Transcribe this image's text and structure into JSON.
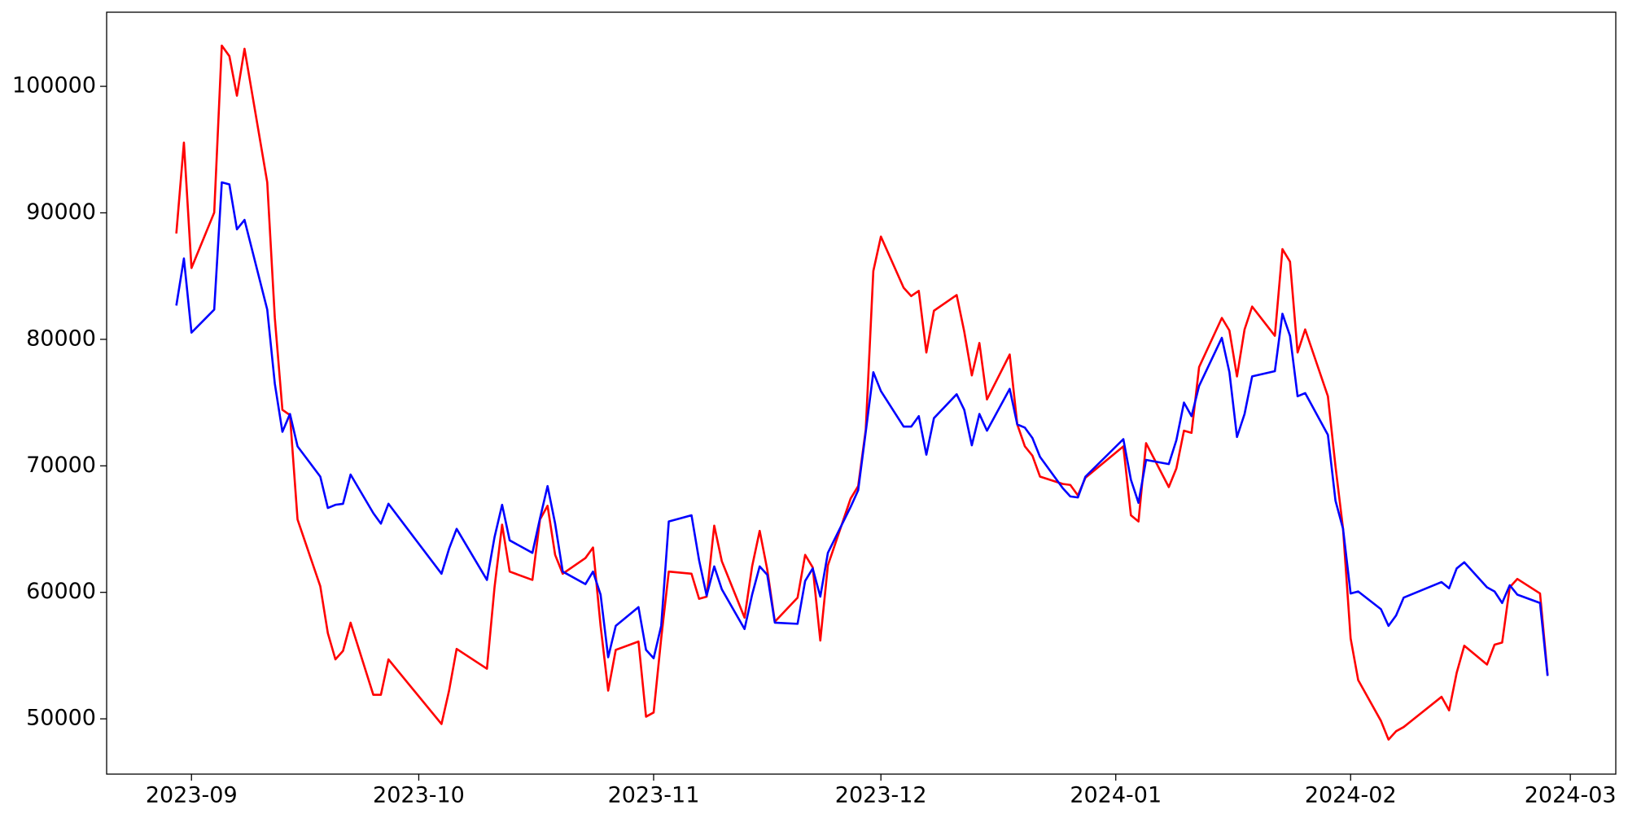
{
  "chart_data": {
    "type": "line",
    "x": [
      -2,
      -1,
      0,
      3,
      4,
      5,
      6,
      7,
      10,
      11,
      12,
      13,
      14,
      17,
      18,
      19,
      20,
      21,
      24,
      25,
      26,
      33,
      34,
      35,
      39,
      40,
      41,
      42,
      45,
      46,
      47,
      48,
      49,
      52,
      53,
      54,
      55,
      56,
      59,
      60,
      61,
      62,
      63,
      66,
      67,
      68,
      69,
      70,
      73,
      74,
      75,
      76,
      77,
      80,
      81,
      82,
      83,
      84,
      87,
      88,
      89,
      90,
      91,
      94,
      95,
      96,
      97,
      98,
      101,
      102,
      103,
      104,
      105,
      108,
      109,
      110,
      111,
      112,
      115,
      116,
      117,
      118,
      123,
      124,
      125,
      126,
      129,
      130,
      131,
      132,
      133,
      136,
      137,
      138,
      139,
      140,
      143,
      144,
      145,
      146,
      147,
      150,
      151,
      152,
      153,
      154,
      157,
      158,
      159,
      160,
      165,
      166,
      167,
      168,
      171,
      172,
      173,
      174,
      175,
      178,
      179
    ],
    "xlim": [
      -11.2,
      188.0
    ],
    "xticks": [
      {
        "value": 0,
        "label": "2023-09"
      },
      {
        "value": 30,
        "label": "2023-10"
      },
      {
        "value": 61,
        "label": "2023-11"
      },
      {
        "value": 91,
        "label": "2023-12"
      },
      {
        "value": 122,
        "label": "2024-01"
      },
      {
        "value": 153,
        "label": "2024-02"
      },
      {
        "value": 182,
        "label": "2024-03"
      }
    ],
    "ylim": [
      45630,
      105860
    ],
    "yticks": [
      50000,
      60000,
      70000,
      80000,
      90000,
      100000
    ],
    "grid": false,
    "series": [
      {
        "color": "#ff0000",
        "values": [
          88370,
          95550,
          85640,
          90020,
          103220,
          102390,
          99260,
          102970,
          92410,
          81690,
          74430,
          74010,
          65760,
          60480,
          56770,
          54700,
          55370,
          57600,
          51900,
          51900,
          54700,
          49590,
          52230,
          55530,
          53960,
          60400,
          65350,
          61640,
          60980,
          65760,
          66840,
          62960,
          61470,
          62710,
          63540,
          57350,
          52230,
          55450,
          56110,
          50170,
          50500,
          56360,
          61640,
          61470,
          59490,
          59660,
          65270,
          62460,
          58000,
          62050,
          64860,
          61800,
          57680,
          59580,
          62960,
          61970,
          56190,
          62130,
          67410,
          68400,
          72860,
          85400,
          88120,
          84080,
          83420,
          83830,
          78960,
          82260,
          83500,
          80610,
          77150,
          79710,
          75250,
          78800,
          73270,
          71540,
          70800,
          69150,
          68570,
          68490,
          67660,
          69060,
          71540,
          66090,
          65600,
          71790,
          68320,
          69800,
          72780,
          72610,
          77810,
          81690,
          80700,
          77070,
          80780,
          82590,
          80280,
          87130,
          86140,
          78960,
          80780,
          75500,
          69970,
          65020,
          56360,
          53060,
          49840,
          48360,
          49020,
          49350,
          51740,
          50670,
          53640,
          55780,
          54290,
          55860,
          56030,
          60400,
          61060,
          59910,
          53470
        ]
      },
      {
        "color": "#0000ff",
        "values": [
          82670,
          86390,
          80530,
          82350,
          92410,
          92250,
          88700,
          89440,
          82350,
          76490,
          72690,
          74100,
          71540,
          69150,
          66670,
          66920,
          67000,
          69310,
          66260,
          65430,
          67000,
          61470,
          63450,
          65020,
          60980,
          64360,
          66920,
          64110,
          63120,
          65840,
          68400,
          65430,
          61640,
          60650,
          61640,
          59820,
          54870,
          57350,
          58830,
          55450,
          54790,
          57350,
          65600,
          66090,
          62540,
          59740,
          62050,
          60240,
          57100,
          59820,
          62050,
          61390,
          57600,
          57510,
          60900,
          61890,
          59660,
          63120,
          66750,
          68070,
          72690,
          77400,
          75910,
          73100,
          73100,
          73930,
          70880,
          73770,
          75660,
          74430,
          71620,
          74100,
          72780,
          76080,
          73270,
          73020,
          72200,
          70710,
          68240,
          67580,
          67500,
          69150,
          72110,
          68900,
          67080,
          70470,
          70140,
          72030,
          75000,
          73930,
          76320,
          80120,
          77400,
          72280,
          74100,
          77070,
          77480,
          82020,
          80280,
          75500,
          75750,
          72450,
          67250,
          65020,
          59910,
          60070,
          58670,
          57350,
          58170,
          59580,
          60810,
          60320,
          61890,
          62380,
          60400,
          60070,
          59160,
          60560,
          59820,
          59160,
          53390
        ]
      }
    ]
  }
}
